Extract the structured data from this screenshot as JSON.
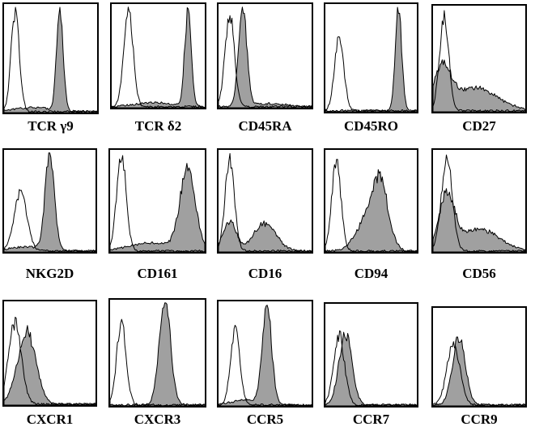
{
  "chart_data": [
    {
      "type": "area",
      "title": "TCR γ9",
      "series": [
        {
          "role": "control",
          "fill": "none",
          "peaks": [
            [
              0.12,
              0.92,
              0.045
            ]
          ]
        },
        {
          "role": "stained",
          "fill": "#a0a0a0",
          "peaks": [
            [
              0.6,
              0.96,
              0.035
            ],
            [
              0.3,
              0.04,
              0.2
            ]
          ]
        }
      ]
    },
    {
      "type": "area",
      "title": "TCR δ2",
      "series": [
        {
          "role": "control",
          "fill": "none",
          "peaks": [
            [
              0.18,
              0.95,
              0.05
            ]
          ]
        },
        {
          "role": "stained",
          "fill": "#a0a0a0",
          "peaks": [
            [
              0.82,
              0.96,
              0.035
            ],
            [
              0.45,
              0.04,
              0.2
            ]
          ]
        }
      ]
    },
    {
      "type": "area",
      "title": "CD45RA",
      "series": [
        {
          "role": "control",
          "fill": "none",
          "peaks": [
            [
              0.12,
              0.92,
              0.05
            ]
          ]
        },
        {
          "role": "stained",
          "fill": "#a0a0a0",
          "peaks": [
            [
              0.26,
              0.95,
              0.045
            ],
            [
              0.55,
              0.03,
              0.2
            ]
          ]
        }
      ]
    },
    {
      "type": "area",
      "title": "CD45RO",
      "series": [
        {
          "role": "control",
          "fill": "none",
          "peaks": [
            [
              0.15,
              0.72,
              0.05
            ]
          ]
        },
        {
          "role": "stained",
          "fill": "#a0a0a0",
          "peaks": [
            [
              0.8,
              0.98,
              0.035
            ]
          ]
        }
      ]
    },
    {
      "type": "area",
      "title": "CD27",
      "series": [
        {
          "role": "control",
          "fill": "none",
          "peaks": [
            [
              0.12,
              0.92,
              0.05
            ]
          ]
        },
        {
          "role": "stained",
          "fill": "#a0a0a0",
          "peaks": [
            [
              0.1,
              0.38,
              0.09
            ],
            [
              0.45,
              0.22,
              0.25
            ]
          ]
        }
      ]
    },
    {
      "type": "area",
      "title": "NKG2D",
      "series": [
        {
          "role": "control",
          "fill": "none",
          "peaks": [
            [
              0.18,
              0.58,
              0.07
            ]
          ]
        },
        {
          "role": "stained",
          "fill": "#a0a0a0",
          "peaks": [
            [
              0.5,
              0.96,
              0.05
            ],
            [
              0.25,
              0.04,
              0.2
            ]
          ]
        }
      ]
    },
    {
      "type": "area",
      "title": "CD161",
      "series": [
        {
          "role": "control",
          "fill": "none",
          "peaks": [
            [
              0.12,
              0.98,
              0.05
            ]
          ]
        },
        {
          "role": "stained",
          "fill": "#a0a0a0",
          "peaks": [
            [
              0.82,
              0.8,
              0.08
            ],
            [
              0.45,
              0.08,
              0.25
            ]
          ]
        }
      ]
    },
    {
      "type": "area",
      "title": "CD16",
      "series": [
        {
          "role": "control",
          "fill": "none",
          "peaks": [
            [
              0.12,
              0.92,
              0.05
            ]
          ]
        },
        {
          "role": "stained",
          "fill": "#a0a0a0",
          "peaks": [
            [
              0.12,
              0.3,
              0.07
            ],
            [
              0.5,
              0.28,
              0.12
            ]
          ]
        }
      ]
    },
    {
      "type": "area",
      "title": "CD94",
      "series": [
        {
          "role": "control",
          "fill": "none",
          "peaks": [
            [
              0.12,
              0.92,
              0.05
            ]
          ]
        },
        {
          "role": "stained",
          "fill": "#a0a0a0",
          "peaks": [
            [
              0.6,
              0.62,
              0.09
            ],
            [
              0.45,
              0.28,
              0.12
            ]
          ]
        }
      ]
    },
    {
      "type": "area",
      "title": "CD56",
      "series": [
        {
          "role": "control",
          "fill": "none",
          "peaks": [
            [
              0.15,
              0.92,
              0.06
            ]
          ]
        },
        {
          "role": "stained",
          "fill": "#a0a0a0",
          "peaks": [
            [
              0.15,
              0.55,
              0.08
            ],
            [
              0.5,
              0.22,
              0.22
            ]
          ]
        }
      ]
    },
    {
      "type": "area",
      "title": "CXCR1",
      "series": [
        {
          "role": "control",
          "fill": "none",
          "peaks": [
            [
              0.12,
              0.8,
              0.07
            ]
          ]
        },
        {
          "role": "stained",
          "fill": "#a0a0a0",
          "peaks": [
            [
              0.25,
              0.72,
              0.1
            ]
          ]
        }
      ]
    },
    {
      "type": "area",
      "title": "CXCR3",
      "series": [
        {
          "role": "control",
          "fill": "none",
          "peaks": [
            [
              0.12,
              0.8,
              0.05
            ]
          ]
        },
        {
          "role": "stained",
          "fill": "#a0a0a0",
          "peaks": [
            [
              0.58,
              0.99,
              0.06
            ]
          ]
        }
      ]
    },
    {
      "type": "area",
      "title": "CCR5",
      "series": [
        {
          "role": "control",
          "fill": "none",
          "peaks": [
            [
              0.18,
              0.76,
              0.05
            ]
          ]
        },
        {
          "role": "stained",
          "fill": "#a0a0a0",
          "peaks": [
            [
              0.52,
              0.96,
              0.05
            ],
            [
              0.3,
              0.05,
              0.15
            ]
          ]
        }
      ]
    },
    {
      "type": "area",
      "title": "CCR7",
      "series": [
        {
          "role": "control",
          "fill": "none",
          "peaks": [
            [
              0.15,
              0.7,
              0.06
            ]
          ]
        },
        {
          "role": "stained",
          "fill": "#a0a0a0",
          "peaks": [
            [
              0.22,
              0.72,
              0.07
            ]
          ]
        }
      ]
    },
    {
      "type": "area",
      "title": "CCR9",
      "series": [
        {
          "role": "control",
          "fill": "none",
          "peaks": [
            [
              0.22,
              0.65,
              0.07
            ]
          ]
        },
        {
          "role": "stained",
          "fill": "#a0a0a0",
          "peaks": [
            [
              0.28,
              0.7,
              0.07
            ]
          ]
        }
      ]
    }
  ]
}
